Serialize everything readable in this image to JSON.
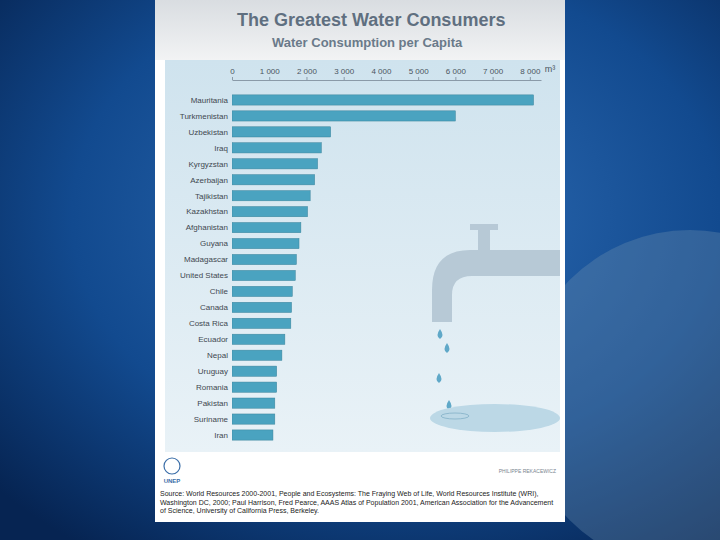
{
  "chart_data": {
    "type": "bar",
    "orientation": "horizontal",
    "title": "The Greatest Water Consumers",
    "subtitle": "Water Consumption per Capita",
    "xlabel": "m³",
    "categories": [
      "Mauritania",
      "Turkmenistan",
      "Uzbekistan",
      "Iraq",
      "Kyrgyzstan",
      "Azerbaijan",
      "Tajikistan",
      "Kazakhstan",
      "Afghanistan",
      "Guyana",
      "Madagascar",
      "United States",
      "Chile",
      "Canada",
      "Costa Rica",
      "Ecuador",
      "Nepal",
      "Uruguay",
      "Romania",
      "Pakistan",
      "Suriname",
      "Iran"
    ],
    "values": [
      8100,
      6000,
      2650,
      2400,
      2300,
      2220,
      2100,
      2030,
      1850,
      1800,
      1730,
      1700,
      1620,
      1600,
      1580,
      1420,
      1340,
      1200,
      1200,
      1150,
      1150,
      1100
    ],
    "color": "#4aa3c0",
    "xlim": [
      0,
      8300
    ],
    "xticks": [
      0,
      {
        "value": 1000,
        "label": "1 000"
      },
      {
        "value": 2000,
        "label": "2 000"
      },
      {
        "value": 3000,
        "label": "3 000"
      },
      {
        "value": 4000,
        "label": "4 000"
      },
      {
        "value": 5000,
        "label": "5 000"
      },
      {
        "value": 6000,
        "label": "6 000"
      },
      {
        "value": 7000,
        "label": "7 000"
      },
      {
        "value": 8000,
        "label": "8 000"
      }
    ],
    "grid": false,
    "annotations": [
      "UNEP",
      "PHILIPPE REKACEWICZ"
    ],
    "source": "Source: World Resources 2000-2001, People and Ecosystems: The Fraying Web of Life, World Resources Institute (WRI), Washington DC, 2000; Paul Harrison, Fred Pearce, AAAS Atlas of Population 2001, American Association for the Advancement of Science, University of California Press, Berkeley."
  }
}
